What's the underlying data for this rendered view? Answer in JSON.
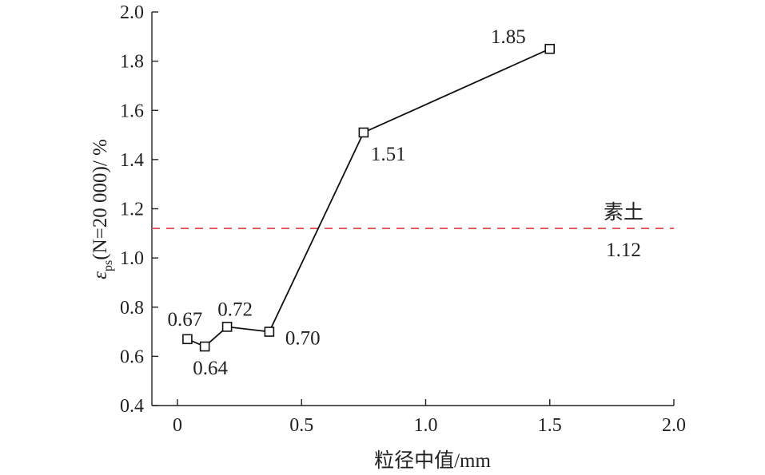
{
  "chart_data": {
    "type": "line",
    "title": "",
    "xlabel": "粒径中值/mm",
    "ylabel": {
      "symbol": "ε",
      "subscript": "ps",
      "rest": "(N=20 000)/ %"
    },
    "xlim": [
      0,
      2.0
    ],
    "ylim": [
      0.4,
      2.0
    ],
    "x_ticks": [
      "0",
      "0.5",
      "1.0",
      "1.5",
      "2.0"
    ],
    "y_ticks": [
      "0.4",
      "0.6",
      "0.8",
      "1.0",
      "1.2",
      "1.4",
      "1.6",
      "1.8",
      "2.0"
    ],
    "grid": false,
    "series": [
      {
        "marker": "square",
        "x": [
          0.04,
          0.11,
          0.2,
          0.37,
          0.75,
          1.5
        ],
        "y": [
          0.67,
          0.64,
          0.72,
          0.7,
          1.51,
          1.85
        ],
        "labels": [
          "0.67",
          "0.64",
          "0.72",
          "0.70",
          "1.51",
          "1.85"
        ]
      }
    ],
    "reference_line": {
      "y": 1.12,
      "label": "素土",
      "value_label": "1.12",
      "color": "#e05050",
      "style": "dashed"
    }
  }
}
